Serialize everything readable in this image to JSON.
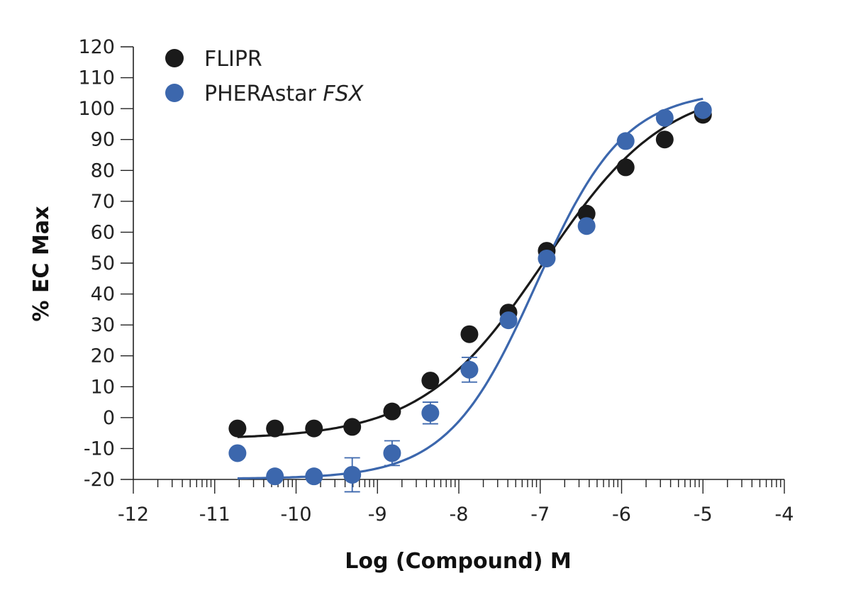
{
  "chart_data": {
    "type": "scatter",
    "xlabel": "Log (Compound) M",
    "ylabel": "% EC Max",
    "xlim": [
      -12,
      -4
    ],
    "ylim": [
      -20,
      120
    ],
    "xticks": [
      "-12",
      "-11",
      "-10",
      "-9",
      "-8",
      "-7",
      "-6",
      "-5",
      "-4"
    ],
    "yticks": [
      "120",
      "110",
      "100",
      "90",
      "80",
      "70",
      "60",
      "50",
      "40",
      "30",
      "20",
      "10",
      "0",
      "-10",
      "-20"
    ],
    "grid": false,
    "legend_position": "top-left",
    "series": [
      {
        "name": "FLIPR",
        "name_italic": "",
        "color": "#1a1a1a",
        "x": [
          -10.72,
          -10.26,
          -9.78,
          -9.31,
          -8.82,
          -8.35,
          -7.87,
          -7.39,
          -6.92,
          -6.43,
          -5.95,
          -5.47,
          -5.0
        ],
        "y": [
          -3.5,
          -3.5,
          -3.5,
          -3.0,
          2.0,
          12.0,
          27.0,
          34.0,
          54.0,
          66.0,
          81.0,
          90.0,
          98.0
        ],
        "fit": {
          "bottom": -7.0,
          "top": 108.0,
          "log_ec50": -6.95,
          "hill": 0.58
        }
      },
      {
        "name": "PHERAstar ",
        "name_italic": "FSX",
        "color": "#3c67ad",
        "x": [
          -10.72,
          -10.26,
          -9.78,
          -9.31,
          -8.82,
          -8.35,
          -7.87,
          -7.39,
          -6.92,
          -6.43,
          -5.95,
          -5.47,
          -5.0
        ],
        "y": [
          -11.5,
          -19.0,
          -19.0,
          -18.5,
          -11.5,
          1.5,
          15.5,
          31.5,
          51.5,
          62.0,
          89.5,
          97.0,
          99.5
        ],
        "err": [
          0,
          0,
          0,
          5.5,
          4.0,
          3.5,
          4.0,
          0,
          0,
          0,
          0,
          0,
          0
        ],
        "fit": {
          "bottom": -19.8,
          "top": 106.0,
          "log_ec50": -7.05,
          "hill": 0.8
        }
      }
    ]
  }
}
